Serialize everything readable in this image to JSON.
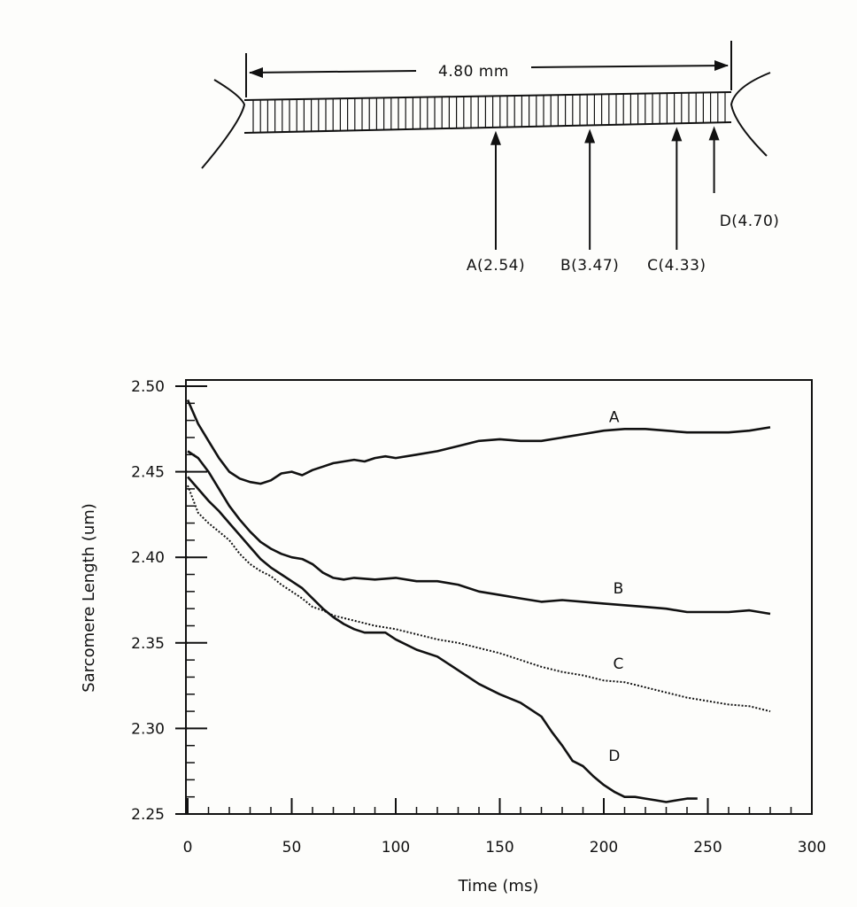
{
  "diagram": {
    "length_label": "4.80 mm",
    "points": [
      {
        "label": "A(2.54)",
        "pos_mm": 2.54
      },
      {
        "label": "B(3.47)",
        "pos_mm": 3.47
      },
      {
        "label": "C(4.33)",
        "pos_mm": 4.33
      },
      {
        "label": "D(4.70)",
        "pos_mm": 4.7
      }
    ],
    "total_mm": 4.8
  },
  "chart_data": {
    "type": "line",
    "title": "",
    "xlabel": "Time (ms)",
    "ylabel": "Sarcomere Length (um)",
    "xlim": [
      0,
      300
    ],
    "ylim": [
      2.25,
      2.5
    ],
    "x_ticks": [
      "0",
      "50",
      "100",
      "150",
      "200",
      "250",
      "300"
    ],
    "y_ticks": [
      "2.25",
      "2.30",
      "2.35",
      "2.40",
      "2.45",
      "2.50"
    ],
    "grid": false,
    "series": [
      {
        "name": "A",
        "style": "solid",
        "x": [
          0,
          5,
          10,
          15,
          20,
          25,
          30,
          35,
          40,
          45,
          50,
          55,
          60,
          65,
          70,
          75,
          80,
          85,
          90,
          95,
          100,
          110,
          120,
          130,
          140,
          150,
          160,
          170,
          180,
          190,
          200,
          210,
          220,
          230,
          240,
          250,
          260,
          270,
          280
        ],
        "y": [
          2.492,
          2.478,
          2.468,
          2.458,
          2.45,
          2.446,
          2.444,
          2.443,
          2.445,
          2.449,
          2.45,
          2.448,
          2.451,
          2.453,
          2.455,
          2.456,
          2.457,
          2.456,
          2.458,
          2.459,
          2.458,
          2.46,
          2.462,
          2.465,
          2.468,
          2.469,
          2.468,
          2.468,
          2.47,
          2.472,
          2.474,
          2.475,
          2.475,
          2.474,
          2.473,
          2.473,
          2.473,
          2.474,
          2.476
        ]
      },
      {
        "name": "B",
        "style": "solid",
        "x": [
          0,
          5,
          10,
          15,
          20,
          25,
          30,
          35,
          40,
          45,
          50,
          55,
          60,
          65,
          70,
          75,
          80,
          90,
          100,
          110,
          120,
          130,
          140,
          150,
          160,
          170,
          180,
          190,
          200,
          210,
          220,
          230,
          240,
          250,
          260,
          270,
          280
        ],
        "y": [
          2.462,
          2.458,
          2.45,
          2.44,
          2.43,
          2.422,
          2.415,
          2.409,
          2.405,
          2.402,
          2.4,
          2.399,
          2.396,
          2.391,
          2.388,
          2.387,
          2.388,
          2.387,
          2.388,
          2.386,
          2.386,
          2.384,
          2.38,
          2.378,
          2.376,
          2.374,
          2.375,
          2.374,
          2.373,
          2.372,
          2.371,
          2.37,
          2.368,
          2.368,
          2.368,
          2.369,
          2.367
        ]
      },
      {
        "name": "C",
        "style": "dotted",
        "x": [
          0,
          5,
          10,
          15,
          20,
          25,
          30,
          35,
          40,
          45,
          50,
          55,
          60,
          65,
          70,
          80,
          90,
          100,
          110,
          120,
          130,
          140,
          150,
          160,
          170,
          180,
          190,
          200,
          210,
          220,
          230,
          240,
          250,
          260,
          270,
          280
        ],
        "y": [
          2.442,
          2.426,
          2.42,
          2.415,
          2.41,
          2.402,
          2.396,
          2.392,
          2.389,
          2.384,
          2.38,
          2.376,
          2.371,
          2.369,
          2.366,
          2.363,
          2.36,
          2.358,
          2.355,
          2.352,
          2.35,
          2.347,
          2.344,
          2.34,
          2.336,
          2.333,
          2.331,
          2.328,
          2.327,
          2.324,
          2.321,
          2.318,
          2.316,
          2.314,
          2.313,
          2.31
        ]
      },
      {
        "name": "D",
        "style": "solid",
        "x": [
          0,
          5,
          10,
          15,
          20,
          25,
          30,
          35,
          40,
          45,
          50,
          55,
          60,
          65,
          70,
          75,
          80,
          85,
          90,
          95,
          100,
          110,
          120,
          130,
          140,
          150,
          160,
          170,
          175,
          180,
          185,
          190,
          195,
          200,
          205,
          210,
          215,
          220,
          225,
          230,
          235,
          240,
          245
        ],
        "y": [
          2.447,
          2.44,
          2.433,
          2.427,
          2.42,
          2.413,
          2.406,
          2.399,
          2.394,
          2.39,
          2.386,
          2.382,
          2.376,
          2.37,
          2.365,
          2.361,
          2.358,
          2.356,
          2.356,
          2.356,
          2.352,
          2.346,
          2.342,
          2.334,
          2.326,
          2.32,
          2.315,
          2.307,
          2.298,
          2.29,
          2.281,
          2.278,
          2.272,
          2.267,
          2.263,
          2.26,
          2.26,
          2.259,
          2.258,
          2.257,
          2.258,
          2.259,
          2.259
        ]
      }
    ],
    "curve_labels": [
      {
        "text": "A",
        "x": 205,
        "y": 2.479
      },
      {
        "text": "B",
        "x": 207,
        "y": 2.379
      },
      {
        "text": "C",
        "x": 207,
        "y": 2.335
      },
      {
        "text": "D",
        "x": 205,
        "y": 2.281
      }
    ]
  }
}
